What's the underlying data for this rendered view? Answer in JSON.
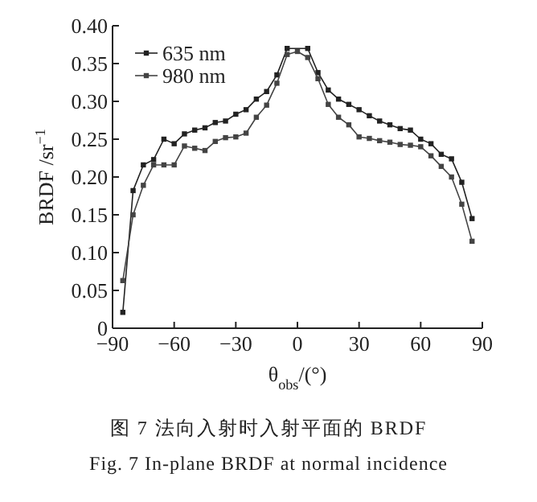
{
  "chart_data": {
    "type": "line",
    "xlabel": "θ$_{obs}$/(°)",
    "ylabel": "BRDF /sr$^{−1}$",
    "annotations": [
      "图 7  法向入射时入射平面的 BRDF",
      "Fig. 7  In-plane BRDF at normal incidence"
    ],
    "xlim": [
      -90,
      90
    ],
    "xticks": [
      -90,
      -60,
      -30,
      0,
      30,
      60,
      90
    ],
    "ylim": [
      0,
      0.4
    ],
    "yticks": [
      {
        "value": 0,
        "label": "0"
      },
      0.05,
      {
        "value": 0.1,
        "label": "0.10"
      },
      0.15,
      {
        "value": 0.2,
        "label": "0.20"
      },
      0.25,
      {
        "value": 0.3,
        "label": "0.30"
      },
      0.35,
      {
        "value": 0.4,
        "label": "0.40"
      }
    ],
    "grid": false,
    "legend": "top left",
    "marker": "square",
    "line_style": "solid",
    "series": [
      {
        "name": "635 nm",
        "color": "#222222",
        "x": [
          -85,
          -80,
          -75,
          -70,
          -65,
          -60,
          -55,
          -50,
          -45,
          -40,
          -35,
          -30,
          -25,
          -20,
          -15,
          -10,
          -5,
          5,
          10,
          15,
          20,
          25,
          30,
          35,
          40,
          45,
          50,
          55,
          60,
          65,
          70,
          75,
          80,
          85
        ],
        "values": [
          0.021,
          0.182,
          0.216,
          0.223,
          0.25,
          0.244,
          0.257,
          0.262,
          0.265,
          0.272,
          0.274,
          0.283,
          0.289,
          0.303,
          0.313,
          0.335,
          0.37,
          0.37,
          0.338,
          0.315,
          0.303,
          0.296,
          0.289,
          0.281,
          0.274,
          0.269,
          0.264,
          0.262,
          0.25,
          0.244,
          0.23,
          0.224,
          0.193,
          0.145
        ]
      },
      {
        "name": "980 nm",
        "color": "#444444",
        "x": [
          -85,
          -80,
          -75,
          -70,
          -65,
          -60,
          -55,
          -50,
          -45,
          -40,
          -35,
          -30,
          -25,
          -20,
          -15,
          -10,
          -5,
          0,
          5,
          10,
          15,
          20,
          25,
          30,
          35,
          40,
          45,
          50,
          55,
          60,
          65,
          70,
          75,
          80,
          85
        ],
        "values": [
          0.063,
          0.15,
          0.189,
          0.216,
          0.216,
          0.216,
          0.241,
          0.238,
          0.235,
          0.247,
          0.252,
          0.253,
          0.258,
          0.279,
          0.295,
          0.324,
          0.362,
          0.366,
          0.358,
          0.33,
          0.296,
          0.279,
          0.269,
          0.253,
          0.251,
          0.248,
          0.246,
          0.243,
          0.242,
          0.24,
          0.228,
          0.214,
          0.2,
          0.164,
          0.115
        ]
      }
    ]
  }
}
